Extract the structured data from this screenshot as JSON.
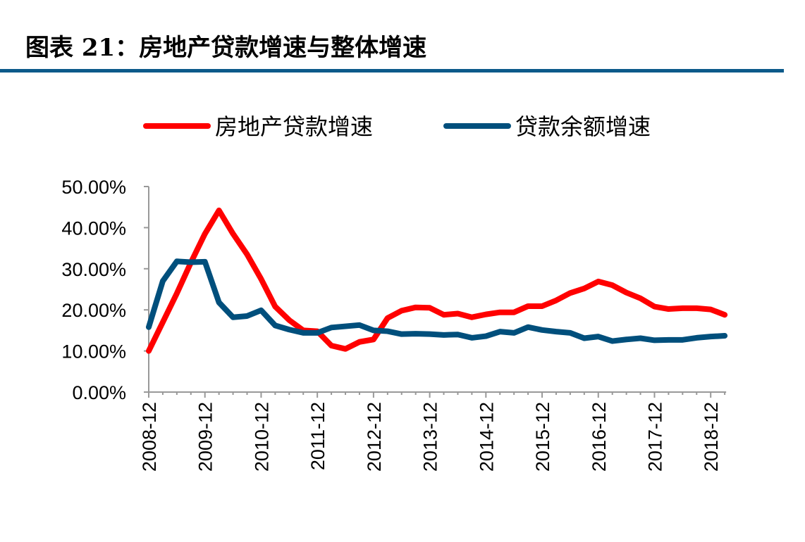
{
  "title": "图表 21：房地产贷款增速与整体增速",
  "chart_data": {
    "type": "line",
    "title": "",
    "xlabel": "",
    "ylabel": "",
    "ylim": [
      0,
      50
    ],
    "yticks": [
      "0.00%",
      "10.00%",
      "20.00%",
      "30.00%",
      "40.00%",
      "50.00%"
    ],
    "xticks": [
      "2008-12",
      "2009-12",
      "2010-12",
      "2011-12",
      "2012-12",
      "2013-12",
      "2014-12",
      "2015-12",
      "2016-12",
      "2017-12",
      "2018-12"
    ],
    "x_frequency": "quarterly",
    "x_start": "2008-12",
    "x_end": "2019-03",
    "grid": false,
    "legend_placement": "top",
    "series": [
      {
        "name": "房地产贷款增速",
        "color": "#ff0000",
        "values": [
          10.0,
          17.0,
          24.0,
          31.5,
          38.5,
          44.2,
          38.5,
          33.5,
          27.5,
          20.8,
          17.5,
          15.0,
          14.8,
          11.3,
          10.5,
          12.2,
          12.8,
          18.0,
          19.8,
          20.6,
          20.5,
          18.8,
          19.1,
          18.2,
          18.9,
          19.4,
          19.4,
          20.9,
          20.9,
          22.3,
          24.1,
          25.2,
          26.9,
          26.0,
          24.2,
          22.8,
          20.8,
          20.2,
          20.4,
          20.4,
          20.1,
          18.8
        ]
      },
      {
        "name": "贷款余额增速",
        "color": "#004f7c",
        "values": [
          15.8,
          27.0,
          31.8,
          31.6,
          31.7,
          21.8,
          18.2,
          18.5,
          19.9,
          16.2,
          15.2,
          14.4,
          14.4,
          15.7,
          16.0,
          16.3,
          15.0,
          14.8,
          14.1,
          14.2,
          14.1,
          13.9,
          14.0,
          13.2,
          13.6,
          14.7,
          14.4,
          15.8,
          15.1,
          14.7,
          14.4,
          13.1,
          13.5,
          12.4,
          12.8,
          13.1,
          12.6,
          12.7,
          12.7,
          13.2,
          13.5,
          13.7
        ]
      }
    ]
  }
}
